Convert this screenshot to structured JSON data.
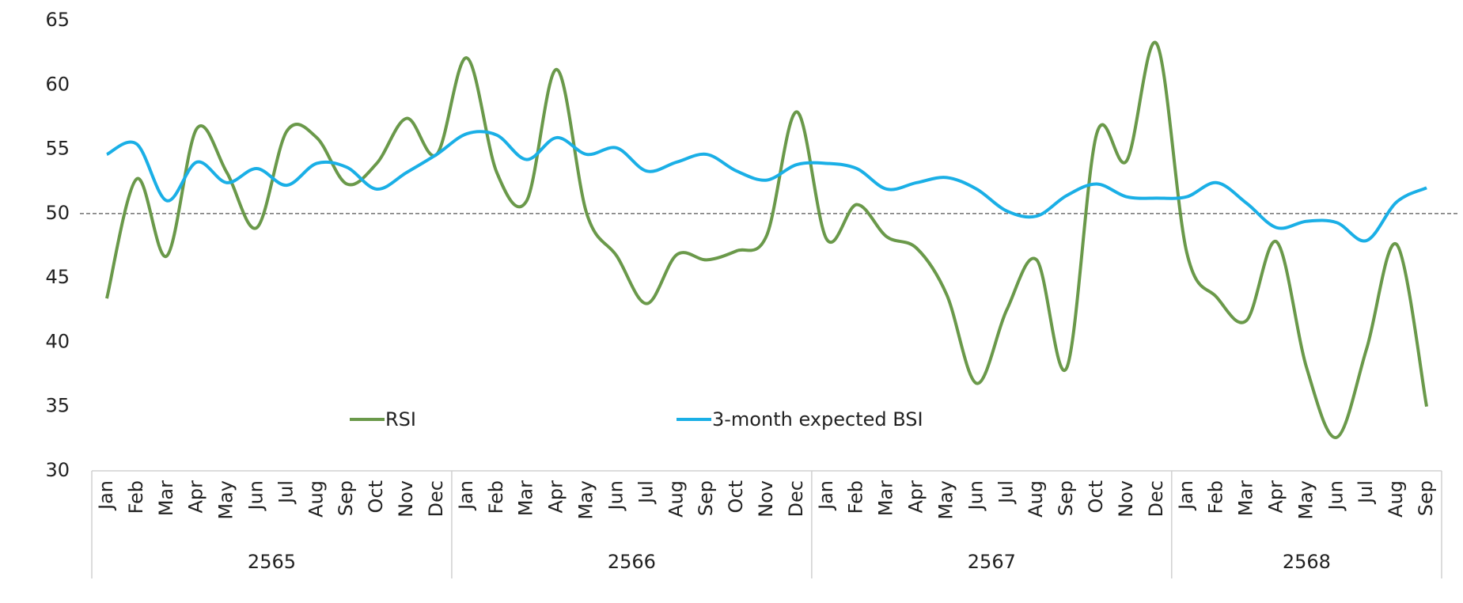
{
  "chart_data": {
    "type": "line",
    "categories": [
      "Jan",
      "Feb",
      "Mar",
      "Apr",
      "May",
      "Jun",
      "Jul",
      "Aug",
      "Sep",
      "Oct",
      "Nov",
      "Dec",
      "Jan",
      "Feb",
      "Mar",
      "Apr",
      "May",
      "Jun",
      "Jul",
      "Aug",
      "Sep",
      "Oct",
      "Nov",
      "Dec",
      "Jan",
      "Feb",
      "Mar",
      "Apr",
      "May",
      "Jun",
      "Jul",
      "Aug",
      "Sep",
      "Oct",
      "Nov",
      "Dec",
      "Jan",
      "Feb",
      "Mar",
      "Apr",
      "May",
      "Jun",
      "Jul",
      "Aug",
      "Sep"
    ],
    "groups": [
      {
        "label": "2565",
        "count": 12
      },
      {
        "label": "2566",
        "count": 12
      },
      {
        "label": "2567",
        "count": 12
      },
      {
        "label": "2568",
        "count": 9
      }
    ],
    "series": [
      {
        "name": "RSI",
        "color": "#6a994a",
        "values": [
          43.4,
          52.7,
          46.7,
          56.6,
          53.2,
          48.9,
          56.4,
          55.9,
          52.3,
          53.9,
          57.4,
          54.6,
          62.1,
          53.2,
          51,
          61.2,
          50,
          46.7,
          43,
          46.8,
          46.4,
          47.1,
          48.3,
          57.9,
          48,
          50.7,
          48.2,
          47.3,
          43.7,
          36.8,
          42.5,
          46.4,
          38,
          56.2,
          54.1,
          63.2,
          47,
          43.5,
          41.7,
          47.8,
          38,
          32.6,
          39.5,
          47.6,
          35
        ]
      },
      {
        "name": "3-month expected BSI",
        "color": "#1aafe6",
        "values": [
          54.6,
          55.4,
          51,
          54,
          52.4,
          53.5,
          52.2,
          53.9,
          53.6,
          51.9,
          53.2,
          54.6,
          56.2,
          56.1,
          54.2,
          55.9,
          54.6,
          55.1,
          53.3,
          54,
          54.6,
          53.3,
          52.6,
          53.8,
          53.9,
          53.5,
          51.9,
          52.4,
          52.8,
          51.9,
          50.2,
          49.8,
          51.4,
          52.3,
          51.3,
          51.2,
          51.3,
          52.4,
          50.8,
          48.9,
          49.4,
          49.3,
          47.9,
          50.9,
          52
        ]
      }
    ],
    "reference_line": 50,
    "ylim": [
      30,
      65
    ],
    "yticks": [
      30,
      35,
      40,
      45,
      50,
      55,
      60,
      65
    ]
  }
}
